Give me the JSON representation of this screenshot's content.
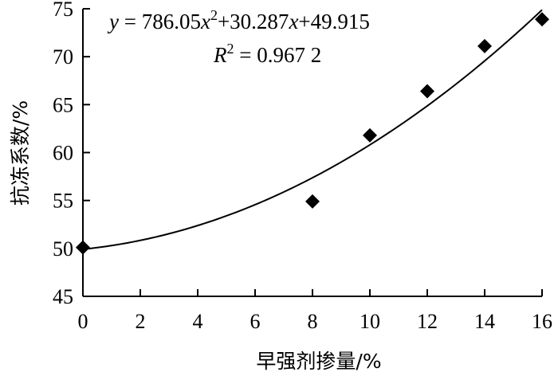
{
  "chart_data": {
    "type": "scatter",
    "title": "",
    "xlabel": "早强剂掺量/%",
    "ylabel": "抗冻系数/%",
    "xlim": [
      0,
      16
    ],
    "ylim": [
      45,
      75
    ],
    "xticks": [
      0,
      2,
      4,
      6,
      8,
      10,
      12,
      14,
      16
    ],
    "yticks": [
      45,
      50,
      55,
      60,
      65,
      70,
      75
    ],
    "xtick_labels": [
      "0",
      "2",
      "4",
      "6",
      "8",
      "10",
      "12",
      "14",
      "16"
    ],
    "ytick_labels": [
      "45",
      "50",
      "55",
      "60",
      "65",
      "70",
      "75"
    ],
    "grid": false,
    "series": [
      {
        "marker": "diamond",
        "color": "#000000",
        "x": [
          0,
          8,
          10,
          12,
          14,
          16
        ],
        "y": [
          50.1,
          54.9,
          61.8,
          66.4,
          71.1,
          73.9
        ]
      }
    ],
    "fit": {
      "kind": "quadratic",
      "a": 786.05,
      "b": 30.287,
      "c": 49.915,
      "x_scale": 0.01,
      "x_range": [
        0,
        16
      ],
      "color": "#000000"
    },
    "annotations": {
      "equation": {
        "y_var": "y",
        "eq_sign": " = 786.05",
        "x_var_1": "x",
        "sup_2": "2",
        "mid": "+30.287",
        "x_var_2": "x",
        "tail": "+49.915"
      },
      "r2": {
        "var": "R",
        "sup": "2",
        "value": " = 0.967 2"
      }
    }
  }
}
